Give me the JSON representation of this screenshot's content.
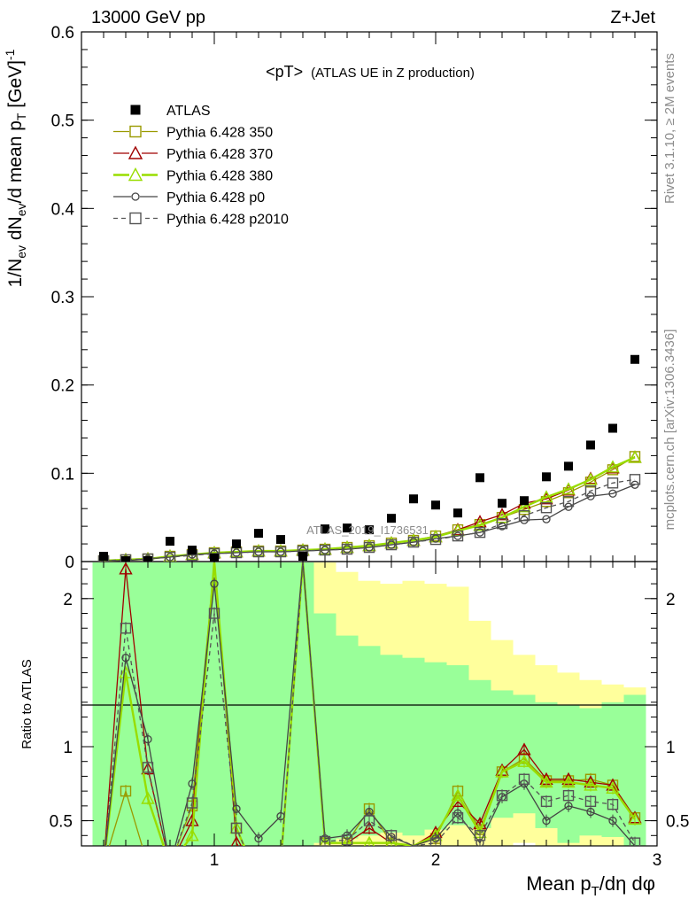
{
  "header": {
    "energy_label": "13000 GeV pp",
    "process_label": "Z+Jet"
  },
  "side_labels": {
    "rivet": "Rivet 3.1.10, ≥ 2M events",
    "mcplots": "mcplots.cern.ch [arXiv:1306.3436]"
  },
  "watermark": "ATLAS_2019_I1736531",
  "chart_data": [
    {
      "type": "line",
      "title": "<pT>",
      "subtitle": "(ATLAS UE in Z production)",
      "ylabel": "1/N_ev dN_ev/d mean p_T [GeV]^-1",
      "xlim": [
        0.4,
        3.0
      ],
      "ylim": [
        0,
        0.6
      ],
      "yticks": [
        "0",
        "0.1",
        "0.2",
        "0.3",
        "0.4",
        "0.5",
        "0.6"
      ],
      "x": [
        0.5,
        0.6,
        0.7,
        0.8,
        0.9,
        1.0,
        1.1,
        1.2,
        1.3,
        1.4,
        1.5,
        1.6,
        1.7,
        1.8,
        1.9,
        2.0,
        2.1,
        2.2,
        2.3,
        2.4,
        2.5,
        2.6,
        2.7,
        2.8,
        2.9
      ],
      "legend_position": "top-left",
      "series": [
        {
          "name": "ATLAS",
          "marker": "filled-square",
          "color": "#000000",
          "values": [
            0.006,
            0.001,
            0.001,
            0.023,
            0.013,
            0.004,
            0.02,
            0.032,
            0.025,
            0.006,
            0.037,
            0.038,
            0.036,
            0.049,
            0.071,
            0.064,
            0.055,
            0.095,
            0.066,
            0.069,
            0.096,
            0.108,
            0.132,
            0.151,
            0.229
          ]
        },
        {
          "name": "Pythia 6.428 350",
          "marker": "open-square",
          "color": "#9a9a00",
          "line": "solid",
          "values": [
            0.001,
            0.002,
            0.003,
            0.006,
            0.008,
            0.01,
            0.011,
            0.012,
            0.012,
            0.013,
            0.014,
            0.016,
            0.018,
            0.021,
            0.024,
            0.029,
            0.036,
            0.042,
            0.05,
            0.059,
            0.068,
            0.078,
            0.09,
            0.104,
            0.119
          ]
        },
        {
          "name": "Pythia 6.428 370",
          "marker": "open-triangle",
          "color": "#a00000",
          "line": "solid",
          "values": [
            0.001,
            0.002,
            0.003,
            0.006,
            0.008,
            0.01,
            0.011,
            0.012,
            0.012,
            0.013,
            0.014,
            0.016,
            0.018,
            0.021,
            0.024,
            0.028,
            0.036,
            0.045,
            0.053,
            0.066,
            0.071,
            0.081,
            0.094,
            0.106,
            0.118
          ]
        },
        {
          "name": "Pythia 6.428 380",
          "marker": "open-triangle",
          "color": "#99dd00",
          "line": "solid-thick",
          "values": [
            0.001,
            0.002,
            0.003,
            0.006,
            0.008,
            0.01,
            0.011,
            0.012,
            0.012,
            0.013,
            0.014,
            0.016,
            0.018,
            0.021,
            0.024,
            0.028,
            0.035,
            0.041,
            0.05,
            0.062,
            0.073,
            0.082,
            0.093,
            0.107,
            0.118
          ]
        },
        {
          "name": "Pythia 6.428 p0",
          "marker": "open-circle",
          "color": "#444444",
          "line": "solid",
          "values": [
            0.001,
            0.001,
            0.003,
            0.005,
            0.008,
            0.009,
            0.01,
            0.011,
            0.011,
            0.012,
            0.013,
            0.014,
            0.016,
            0.019,
            0.022,
            0.026,
            0.029,
            0.033,
            0.04,
            0.047,
            0.048,
            0.062,
            0.074,
            0.077,
            0.087
          ]
        },
        {
          "name": "Pythia 6.428 p2010",
          "marker": "open-square",
          "color": "#555555",
          "line": "dashed",
          "values": [
            0.001,
            0.002,
            0.003,
            0.005,
            0.007,
            0.009,
            0.01,
            0.011,
            0.011,
            0.012,
            0.013,
            0.014,
            0.016,
            0.019,
            0.022,
            0.025,
            0.029,
            0.033,
            0.043,
            0.052,
            0.061,
            0.068,
            0.08,
            0.089,
            0.093
          ]
        }
      ]
    },
    {
      "type": "line",
      "xlabel": "Mean p_T/dη dφ",
      "ylabel": "Ratio to ATLAS",
      "xlim": [
        0.4,
        3.0
      ],
      "ylim": [
        0.33,
        2.25
      ],
      "yticks": [
        "0.5",
        "1",
        "2"
      ],
      "xticks": [
        "1",
        "2",
        "3"
      ],
      "reference_line": 1,
      "uncertainty_bands": {
        "bin_edges": [
          0.45,
          0.55,
          0.65,
          0.75,
          0.85,
          0.95,
          1.05,
          1.15,
          1.25,
          1.35,
          1.45,
          1.55,
          1.65,
          1.75,
          1.85,
          1.95,
          2.05,
          2.15,
          2.25,
          2.35,
          2.45,
          2.55,
          2.65,
          2.75,
          2.85,
          2.95
        ],
        "stat_low": [
          0.33,
          0.33,
          0.33,
          0.33,
          0.33,
          0.33,
          0.33,
          0.33,
          0.33,
          0.33,
          0.35,
          0.38,
          0.4,
          0.42,
          0.4,
          0.44,
          0.47,
          0.45,
          0.52,
          0.55,
          0.45,
          0.35,
          0.4,
          0.39,
          0.33
        ],
        "stat_high": [
          2.25,
          2.25,
          2.25,
          2.25,
          2.25,
          2.25,
          2.25,
          2.25,
          2.25,
          2.25,
          1.9,
          1.75,
          1.68,
          1.62,
          1.6,
          1.57,
          1.55,
          1.45,
          1.38,
          1.35,
          1.3,
          1.28,
          1.26,
          1.3,
          1.35
        ],
        "total_low": [
          0.33,
          0.33,
          0.33,
          0.33,
          0.33,
          0.33,
          0.33,
          0.33,
          0.33,
          0.33,
          0.33,
          0.33,
          0.33,
          0.33,
          0.33,
          0.33,
          0.33,
          0.33,
          0.33,
          0.35,
          0.33,
          0.33,
          0.33,
          0.33,
          0.33
        ],
        "total_high": [
          2.25,
          2.25,
          2.25,
          2.25,
          2.25,
          2.25,
          2.25,
          2.25,
          2.25,
          2.25,
          2.25,
          2.18,
          2.12,
          2.1,
          2.12,
          2.1,
          2.08,
          1.85,
          1.72,
          1.62,
          1.55,
          1.5,
          1.45,
          1.42,
          1.4
        ],
        "stat_color": "#99ff99",
        "total_color": "#ffff9c"
      },
      "series": [
        {
          "name": "Pythia 6.428 350",
          "values": [
            0.2,
            0.7,
            0.2,
            0.2,
            0.6,
            2.25,
            0.45,
            0.1,
            0.2,
            2.25,
            0.35,
            0.35,
            0.58,
            0.35,
            0.33,
            0.38,
            0.7,
            0.44,
            0.83,
            0.92,
            0.77,
            0.77,
            0.78,
            0.74,
            0.52
          ]
        },
        {
          "name": "Pythia 6.428 370",
          "values": [
            0.2,
            2.2,
            0.85,
            0.2,
            0.5,
            2.25,
            0.35,
            0.1,
            0.2,
            2.25,
            0.35,
            0.35,
            0.45,
            0.35,
            0.33,
            0.42,
            0.63,
            0.48,
            0.84,
            0.98,
            0.78,
            0.78,
            0.76,
            0.74,
            0.52
          ]
        },
        {
          "name": "Pythia 6.428 380",
          "values": [
            0.2,
            1.5,
            0.65,
            0.2,
            0.4,
            2.25,
            0.45,
            0.1,
            0.2,
            2.25,
            0.35,
            0.35,
            0.35,
            0.35,
            0.33,
            0.4,
            0.67,
            0.42,
            0.83,
            0.9,
            0.76,
            0.76,
            0.74,
            0.72,
            0.51
          ]
        },
        {
          "name": "Pythia 6.428 p0",
          "values": [
            0.2,
            1.6,
            1.05,
            0.2,
            0.75,
            2.1,
            0.58,
            0.38,
            0.53,
            2.25,
            0.38,
            0.4,
            0.56,
            0.39,
            0.33,
            0.38,
            0.55,
            0.35,
            0.66,
            0.75,
            0.5,
            0.6,
            0.56,
            0.5,
            0.33
          ]
        },
        {
          "name": "Pythia 6.428 p2010",
          "values": [
            0.2,
            1.8,
            0.86,
            0.2,
            0.62,
            1.9,
            0.45,
            0.1,
            0.2,
            2.25,
            0.36,
            0.37,
            0.5,
            0.4,
            0.33,
            0.35,
            0.52,
            0.4,
            0.67,
            0.78,
            0.63,
            0.67,
            0.63,
            0.61,
            0.35
          ]
        }
      ]
    }
  ]
}
